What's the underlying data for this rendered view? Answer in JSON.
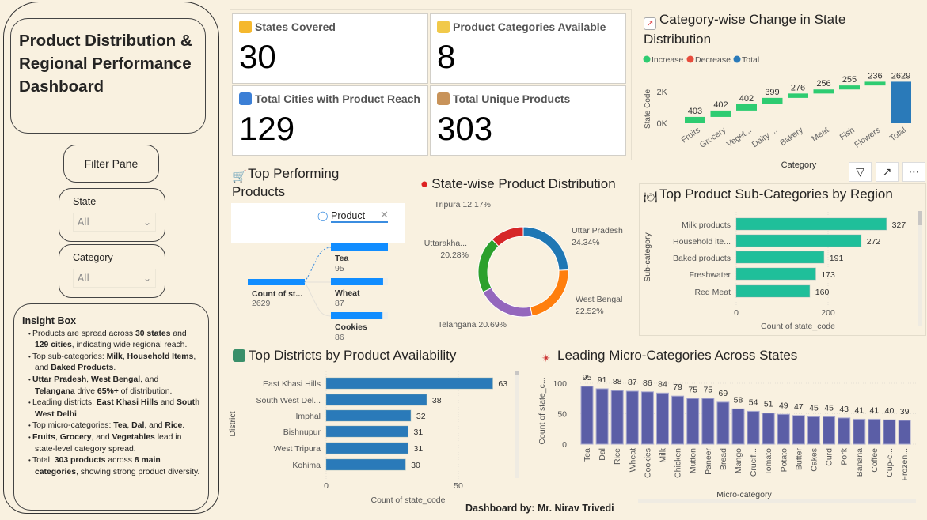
{
  "sidebar": {
    "title": "Product Distribution & Regional Performance Dashboard",
    "filter_pane": "Filter Pane",
    "state_label": "State",
    "state_value": "All",
    "category_label": "Category",
    "category_value": "All"
  },
  "insight": {
    "title": "Insight Box",
    "items": [
      [
        "Products are spread across ",
        "30 states",
        " and ",
        "129 cities",
        ", indicating wide regional reach."
      ],
      [
        "Top sub-categories: ",
        "Milk",
        ", ",
        "Household Items",
        ", and ",
        "Baked Products",
        "."
      ],
      [
        "",
        "Uttar Pradesh",
        ", ",
        "West Bengal",
        ", and ",
        "Telangana",
        " drive ",
        "65%+",
        " of distribution."
      ],
      [
        "Leading districts: ",
        "East Khasi Hills",
        " and ",
        "South West Delhi",
        "."
      ],
      [
        "Top micro-categories: ",
        "Tea",
        ", ",
        "Dal",
        ", and ",
        "Rice",
        "."
      ],
      [
        "",
        "Fruits",
        ", ",
        "Grocery",
        ", and ",
        "Vegetables",
        " lead in state-level category spread."
      ],
      [
        "Total: ",
        "303 products",
        " across ",
        "8 main categories",
        ", showing strong product diversity."
      ]
    ]
  },
  "kpis": [
    {
      "label": "States Covered",
      "value": "30",
      "icon": "compass-icon"
    },
    {
      "label": "Product Categories Available",
      "value": "8",
      "icon": "folder-icon"
    },
    {
      "label": "Total Cities with Product Reach",
      "value": "129",
      "icon": "city-icon"
    },
    {
      "label": "Total Unique Products",
      "value": "303",
      "icon": "package-icon"
    }
  ],
  "footer": "Dashboard by: Mr. Nirav Trivedi",
  "chart_data": [
    {
      "type": "waterfall",
      "title": "Category-wise Change in State Distribution",
      "xlabel": "Category",
      "ylabel": "State Code",
      "legend": [
        "Increase",
        "Decrease",
        "Total"
      ],
      "legend_position": "top-left",
      "colors": {
        "Increase": "#2ecc71",
        "Decrease": "#e74c3c",
        "Total": "#2a7ab9"
      },
      "categories": [
        "Fruits",
        "Grocery",
        "Veget...",
        "Dairy ...",
        "Bakery",
        "Meat",
        "Fish",
        "Flowers",
        "Total"
      ],
      "values": [
        403,
        402,
        402,
        399,
        276,
        256,
        255,
        236,
        2629
      ],
      "yticks": [
        "0K",
        "2K"
      ]
    },
    {
      "type": "decomposition-tree",
      "title": "Top Performing Products",
      "field": "Product",
      "root": {
        "label": "Count of st...",
        "value": 2629
      },
      "nodes": [
        {
          "label": "Tea",
          "value": 95
        },
        {
          "label": "Wheat",
          "value": 87
        },
        {
          "label": "Cookies",
          "value": 86
        }
      ]
    },
    {
      "type": "pie",
      "title": "State-wise Product Distribution",
      "slices": [
        {
          "label": "Uttar Pradesh",
          "value": 24.34,
          "pct": "24.34%",
          "color": "#1f77b4"
        },
        {
          "label": "West Bengal",
          "value": 22.52,
          "pct": "22.52%",
          "color": "#ff7f0e"
        },
        {
          "label": "Telangana",
          "value": 20.69,
          "pct": "20.69%",
          "color": "#9467bd"
        },
        {
          "label": "Uttarakha...",
          "value": 20.28,
          "pct": "20.28%",
          "color": "#2ca02c"
        },
        {
          "label": "Tripura",
          "value": 12.17,
          "pct": "12.17%",
          "color": "#d62728"
        }
      ]
    },
    {
      "type": "bar",
      "orientation": "horizontal",
      "title": "Top Product Sub-Categories by Region",
      "xlabel": "Count of state_code",
      "ylabel": "Sub-category",
      "categories": [
        "Milk products",
        "Household ite...",
        "Baked products",
        "Freshwater",
        "Red Meat"
      ],
      "values": [
        327,
        272,
        191,
        173,
        160
      ],
      "xticks": [
        0,
        200
      ],
      "color": "#1fbf9a"
    },
    {
      "type": "bar",
      "orientation": "horizontal",
      "title": "Top Districts by Product Availability",
      "xlabel": "Count of state_code",
      "ylabel": "District",
      "categories": [
        "East Khasi Hills",
        "South West Del...",
        "Imphal",
        "Bishnupur",
        "West Tripura",
        "Kohima"
      ],
      "values": [
        63,
        38,
        32,
        31,
        31,
        30
      ],
      "xticks": [
        0,
        50
      ],
      "color": "#2a7ab9"
    },
    {
      "type": "bar",
      "title": "Leading Micro-Categories Across States",
      "xlabel": "Micro-category",
      "ylabel": "Count of state_c...",
      "categories": [
        "Tea",
        "Dal",
        "Rice",
        "Wheat",
        "Cookies",
        "Milk",
        "Chicken",
        "Mutton",
        "Paneer",
        "Bread",
        "Mango",
        "Crucif...",
        "Tomato",
        "Potato",
        "Butter",
        "Cakes",
        "Curd",
        "Pork",
        "Banana",
        "Coffee",
        "Cup-c...",
        "Frozen..."
      ],
      "values": [
        95,
        91,
        88,
        87,
        86,
        84,
        79,
        75,
        75,
        69,
        58,
        54,
        51,
        49,
        47,
        45,
        45,
        43,
        41,
        41,
        40,
        39
      ],
      "yticks": [
        0,
        50,
        100
      ],
      "color": "#5b5ea6"
    }
  ]
}
